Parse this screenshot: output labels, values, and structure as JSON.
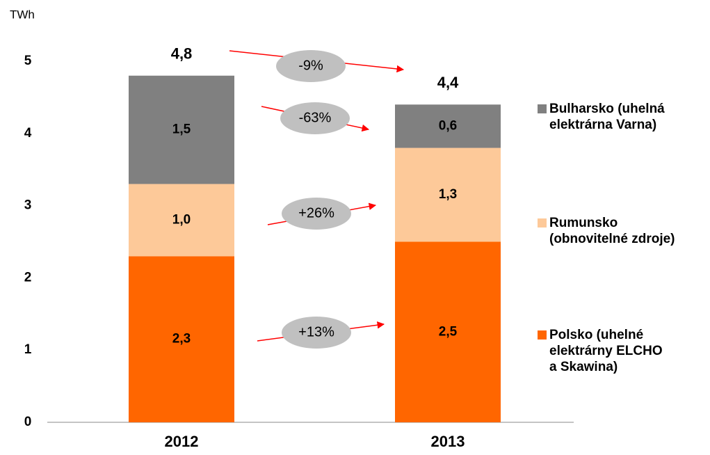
{
  "chart_data": {
    "type": "stacked_bar",
    "y_axis_label": "TWh",
    "categories": [
      "2012",
      "2013"
    ],
    "series": [
      {
        "name": "Polsko (uhelné\nelektrárny ELCHO\na Skawina)",
        "color": "#ff6600",
        "values": [
          2.3,
          2.5
        ],
        "value_labels": [
          "2,3",
          "2,5"
        ]
      },
      {
        "name": "Rumunsko\n(obnovitelné zdroje)",
        "color": "#fdc999",
        "values": [
          1.0,
          1.3
        ],
        "value_labels": [
          "1,0",
          "1,3"
        ]
      },
      {
        "name": "Bulharsko (uhelná\nelektrárna Varna)",
        "color": "#808080",
        "values": [
          1.5,
          0.6
        ],
        "value_labels": [
          "1,5",
          "0,6"
        ]
      }
    ],
    "totals": [
      4.8,
      4.4
    ],
    "total_labels": [
      "4,8",
      "4,4"
    ],
    "annotations": [
      "+13%",
      "+26%",
      "-63%",
      "-9%"
    ],
    "ylim": [
      0,
      5
    ],
    "yticks": [
      0,
      1,
      2,
      3,
      4,
      5
    ],
    "grid": false
  }
}
